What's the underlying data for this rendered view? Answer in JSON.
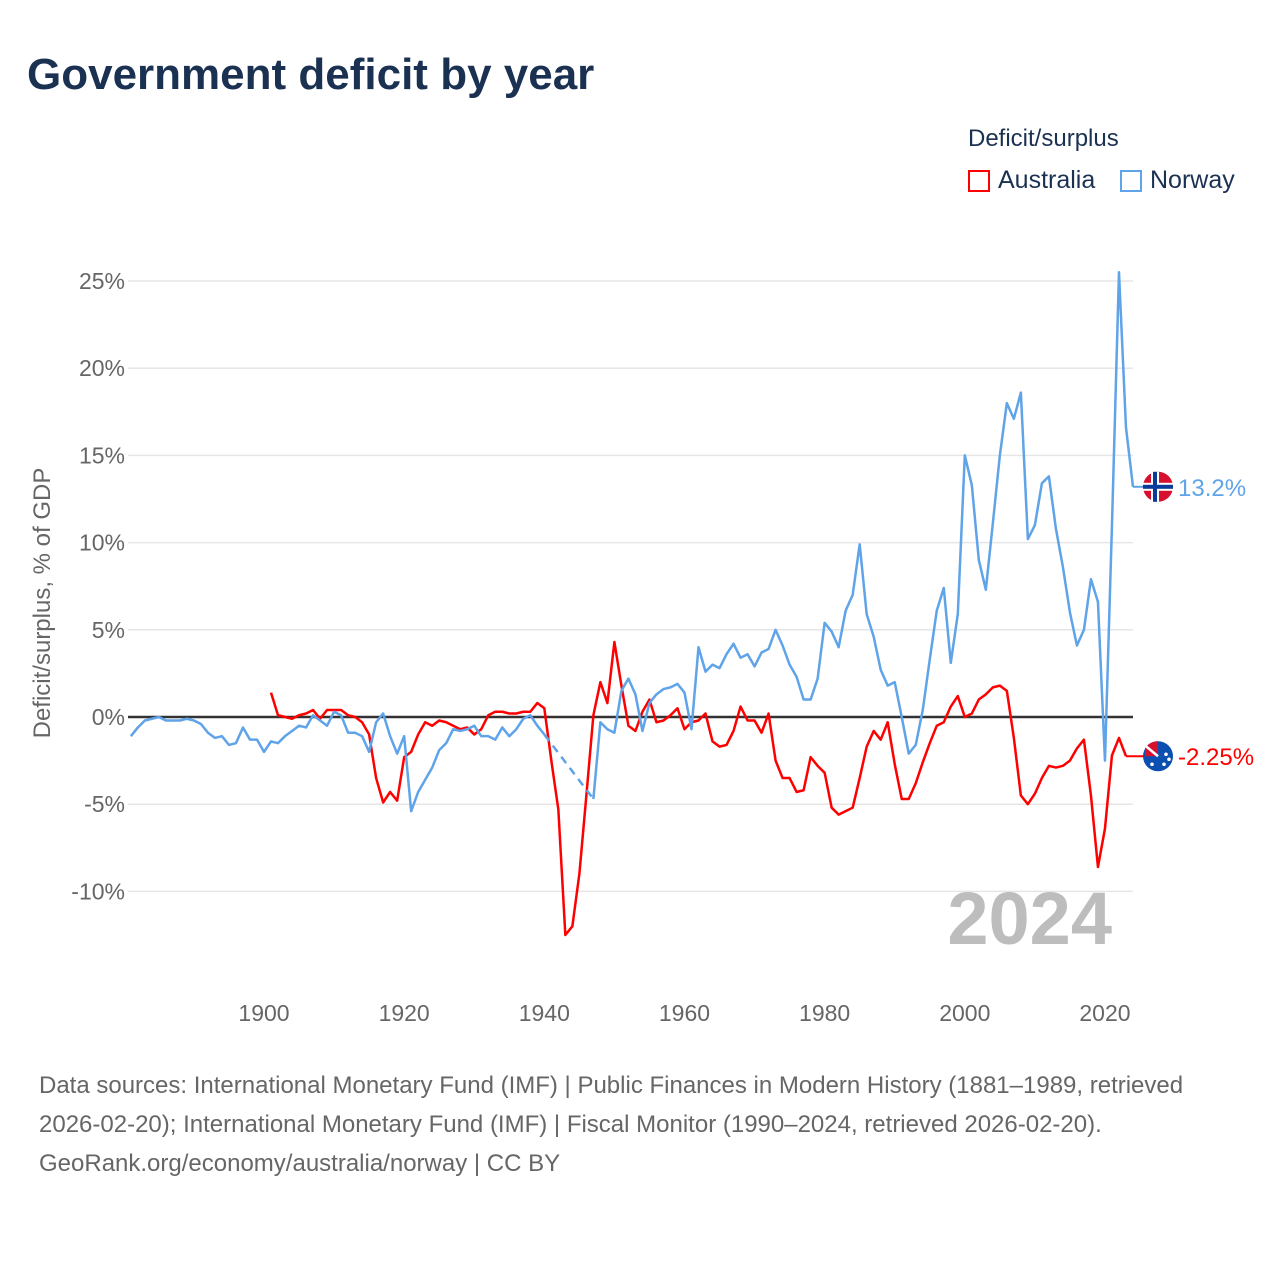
{
  "chart_data": {
    "type": "line",
    "title": "Government deficit by year",
    "ylabel": "Deficit/surplus, % of GDP",
    "xlabel": "",
    "legend_title": "Deficit/surplus",
    "legend_position": "top-right",
    "ylim": [
      -15,
      27
    ],
    "xlim": [
      1881,
      2024
    ],
    "yticks": [
      -10,
      -5,
      0,
      5,
      10,
      15,
      20,
      25
    ],
    "ytick_labels": [
      "-10%",
      "-5%",
      "0%",
      "5%",
      "10%",
      "15%",
      "20%",
      "25%"
    ],
    "xticks": [
      1900,
      1920,
      1940,
      1960,
      1980,
      2000,
      2020
    ],
    "xtick_labels": [
      "1900",
      "1920",
      "1940",
      "1960",
      "1980",
      "2000",
      "2020"
    ],
    "year_watermark": "2024",
    "series": [
      {
        "name": "Australia",
        "color": "#ff0000",
        "end_label": "-2.25%",
        "start_year": 1901,
        "values": [
          1.4,
          0.1,
          0,
          -0.1,
          0.1,
          0.2,
          0.4,
          -0.1,
          0.4,
          0.4,
          0.4,
          0.1,
          0,
          -0.3,
          -1.0,
          -3.5,
          -4.9,
          -4.3,
          -4.8,
          -2.3,
          -2.0,
          -1.0,
          -0.3,
          -0.5,
          -0.2,
          -0.3,
          -0.5,
          -0.7,
          -0.6,
          -1.0,
          -0.7,
          0.1,
          0.3,
          0.3,
          0.2,
          0.2,
          0.3,
          0.3,
          0.8,
          0.5,
          -2.5,
          -5.3,
          -12.5,
          -12.0,
          -9.0,
          -4.5,
          0.1,
          2.0,
          0.8,
          4.3,
          1.8,
          -0.5,
          -0.8,
          0.3,
          1.0,
          -0.3,
          -0.2,
          0.1,
          0.5,
          -0.7,
          -0.3,
          -0.2,
          0.2,
          -1.4,
          -1.7,
          -1.6,
          -0.8,
          0.6,
          -0.2,
          -0.2,
          -0.9,
          0.2,
          -2.5,
          -3.5,
          -3.5,
          -4.3,
          -4.2,
          -2.3,
          -2.8,
          -3.2,
          -5.2,
          -5.6,
          -5.4,
          -5.2,
          -3.5,
          -1.7,
          -0.8,
          -1.3,
          -0.3,
          -2.7,
          -4.7,
          -4.7,
          -3.8,
          -2.6,
          -1.5,
          -0.5,
          -0.3,
          0.6,
          1.2,
          0.0,
          0.2,
          1.0,
          1.3,
          1.7,
          1.8,
          1.5,
          -1.2,
          -4.5,
          -5.0,
          -4.4,
          -3.5,
          -2.8,
          -2.9,
          -2.8,
          -2.5,
          -1.8,
          -1.3,
          -4.5,
          -8.6,
          -6.4,
          -2.2,
          -1.2,
          -2.25
        ]
      },
      {
        "name": "Norway",
        "color": "#5fa3e8",
        "end_label": "13.2%",
        "start_year": 1881,
        "values": [
          -1.1,
          -0.6,
          -0.2,
          -0.1,
          0,
          -0.2,
          -0.2,
          -0.2,
          -0.1,
          -0.2,
          -0.4,
          -0.9,
          -1.2,
          -1.1,
          -1.6,
          -1.5,
          -0.6,
          -1.3,
          -1.3,
          -2.0,
          -1.4,
          -1.5,
          -1.1,
          -0.8,
          -0.5,
          -0.6,
          0.1,
          -0.2,
          -0.5,
          0.3,
          0.1,
          -0.9,
          -0.9,
          -1.1,
          -2.0,
          -0.3,
          0.2,
          -1.1,
          -2.1,
          -1.1,
          -5.4,
          -4.3,
          -3.6,
          -2.9,
          -1.9,
          -1.5,
          -0.7,
          -0.8,
          -0.7,
          -0.5,
          -1.1,
          -1.1,
          -1.3,
          -0.6,
          -1.1,
          -0.7,
          -0.1,
          0.1,
          -0.5,
          -1.0,
          null,
          null,
          null,
          null,
          null,
          null,
          -4.7,
          -0.3,
          -0.7,
          -0.9,
          1.5,
          2.2,
          1.3,
          -0.8,
          0.8,
          1.3,
          1.6,
          1.7,
          1.9,
          1.4,
          -0.7,
          4.0,
          2.6,
          3.0,
          2.8,
          3.6,
          4.2,
          3.4,
          3.6,
          2.9,
          3.7,
          3.9,
          5.0,
          4.1,
          3.0,
          2.3,
          1.0,
          1.0,
          2.2,
          5.4,
          4.9,
          4.0,
          6.1,
          7.0,
          9.9,
          5.9,
          4.6,
          2.7,
          1.8,
          2.0,
          0.0,
          -2.1,
          -1.6,
          0.4,
          3.3,
          6.1,
          7.4,
          3.1,
          5.9,
          15.0,
          13.3,
          9.0,
          7.3,
          11.1,
          15.0,
          18.0,
          17.1,
          18.6,
          10.2,
          11.0,
          13.4,
          13.8,
          10.8,
          8.6,
          6.0,
          4.1,
          5.0,
          7.9,
          6.6,
          -2.5,
          11.0,
          25.5,
          16.6,
          13.2
        ]
      }
    ]
  },
  "footer": {
    "sources": "Data sources: International Monetary Fund (IMF) | Public Finances in Modern History (1881–1989, retrieved 2026-02-20); International Monetary Fund (IMF) | Fiscal Monitor (1990–2024, retrieved 2026-02-20).",
    "credit": "GeoRank.org/economy/australia/norway | CC BY"
  }
}
